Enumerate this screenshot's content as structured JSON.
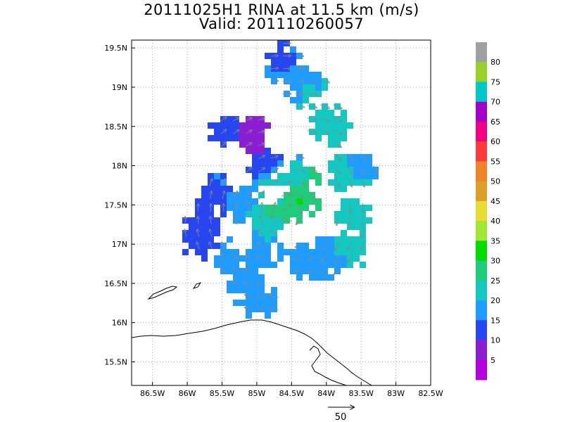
{
  "header": {
    "title": "20111025H1 RINA at 11.5 km (m/s)",
    "subtitle": "Valid: 201110260057"
  },
  "map": {
    "lon_range": [
      -86.8,
      -82.5
    ],
    "lat_range": [
      15.2,
      19.6
    ],
    "lon_ticks": [
      "86.5W",
      "86W",
      "85.5W",
      "85W",
      "84.5W",
      "84W",
      "83.5W",
      "83W",
      "82.5W"
    ],
    "lat_ticks": [
      "19.5N",
      "19N",
      "18.5N",
      "18N",
      "17.5N",
      "17N",
      "16.5N",
      "16N",
      "15.5N"
    ],
    "grid": true
  },
  "colorbar": {
    "labels": [
      "80",
      "75",
      "70",
      "65",
      "60",
      "55",
      "50",
      "45",
      "40",
      "35",
      "30",
      "25",
      "20",
      "15",
      "10",
      "5"
    ],
    "colors": [
      "#a0a0a0",
      "#96d22a",
      "#00c8c8",
      "#a000c8",
      "#f00082",
      "#fa3c3c",
      "#f08228",
      "#dca028",
      "#e6dc32",
      "#a0e632",
      "#00dc00",
      "#1ecc7a",
      "#12c8c0",
      "#1e9cff",
      "#2846f0",
      "#8c1ed2",
      "#b400dc"
    ]
  },
  "reference_vector": {
    "label": "50"
  },
  "chart_data": {
    "type": "heatmap",
    "title": "20111025H1 RINA at 11.5 km (m/s)",
    "subtitle": "Valid: 201110260057",
    "units": "m/s",
    "description_points": [
      {
        "lon": -84.6,
        "lat": 19.3,
        "speed": 12
      },
      {
        "lon": -84.3,
        "lat": 19.0,
        "speed": 22
      },
      {
        "lon": -83.95,
        "lat": 18.52,
        "speed": 22
      },
      {
        "lon": -85.4,
        "lat": 18.45,
        "speed": 12
      },
      {
        "lon": -85.05,
        "lat": 18.35,
        "speed": 7
      },
      {
        "lon": -84.9,
        "lat": 18.0,
        "speed": 12
      },
      {
        "lon": -84.4,
        "lat": 17.85,
        "speed": 23
      },
      {
        "lon": -83.7,
        "lat": 17.9,
        "speed": 22
      },
      {
        "lon": -83.5,
        "lat": 17.95,
        "speed": 17
      },
      {
        "lon": -84.4,
        "lat": 17.55,
        "speed": 32
      },
      {
        "lon": -84.8,
        "lat": 17.35,
        "speed": 28
      },
      {
        "lon": -84.9,
        "lat": 17.1,
        "speed": 20
      },
      {
        "lon": -85.2,
        "lat": 17.5,
        "speed": 18
      },
      {
        "lon": -85.6,
        "lat": 17.65,
        "speed": 14
      },
      {
        "lon": -85.75,
        "lat": 17.3,
        "speed": 12
      },
      {
        "lon": -85.8,
        "lat": 17.05,
        "speed": 14
      },
      {
        "lon": -85.4,
        "lat": 16.8,
        "speed": 16
      },
      {
        "lon": -85.15,
        "lat": 16.55,
        "speed": 20
      },
      {
        "lon": -85.0,
        "lat": 16.3,
        "speed": 18
      },
      {
        "lon": -84.95,
        "lat": 16.85,
        "speed": 15
      },
      {
        "lon": -84.3,
        "lat": 16.8,
        "speed": 14
      },
      {
        "lon": -84.05,
        "lat": 16.8,
        "speed": 19
      },
      {
        "lon": -83.7,
        "lat": 16.9,
        "speed": 22
      },
      {
        "lon": -83.6,
        "lat": 17.35,
        "speed": 24
      }
    ]
  }
}
